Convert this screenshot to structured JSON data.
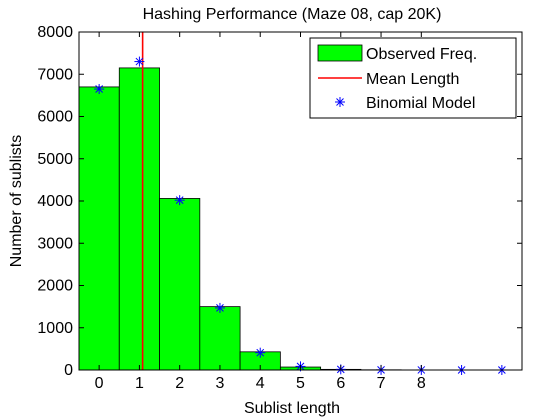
{
  "chart_data": {
    "type": "bar",
    "title": "Hashing Performance (Maze 08, cap 20K)",
    "xlabel": "Sublist length",
    "ylabel": "Number of sublists",
    "xlim": [
      -0.5,
      10.5
    ],
    "ylim": [
      0,
      8000
    ],
    "yticks": [
      0,
      1000,
      2000,
      3000,
      4000,
      5000,
      6000,
      7000,
      8000
    ],
    "xticks": [
      0,
      1,
      2,
      3,
      4,
      5,
      6,
      7,
      8
    ],
    "grid": false,
    "legend_position": "top-right",
    "series": [
      {
        "name": "Observed Freq.",
        "type": "bar",
        "color": "#00ff00",
        "x": [
          0,
          1,
          2,
          3,
          4,
          5,
          6,
          7,
          8
        ],
        "values": [
          6700,
          7150,
          4060,
          1500,
          430,
          70,
          15,
          5,
          2
        ]
      },
      {
        "name": "Mean Length",
        "type": "vline",
        "color": "#ff0000",
        "x": 1.08
      },
      {
        "name": "Binomial Model",
        "type": "scatter",
        "marker": "asterisk",
        "color": "#0000ff",
        "x": [
          0,
          1,
          2,
          3,
          4,
          5,
          6,
          7,
          8,
          9,
          10
        ],
        "values": [
          6650,
          7300,
          4020,
          1470,
          410,
          85,
          15,
          3,
          1,
          0,
          0
        ]
      }
    ]
  }
}
